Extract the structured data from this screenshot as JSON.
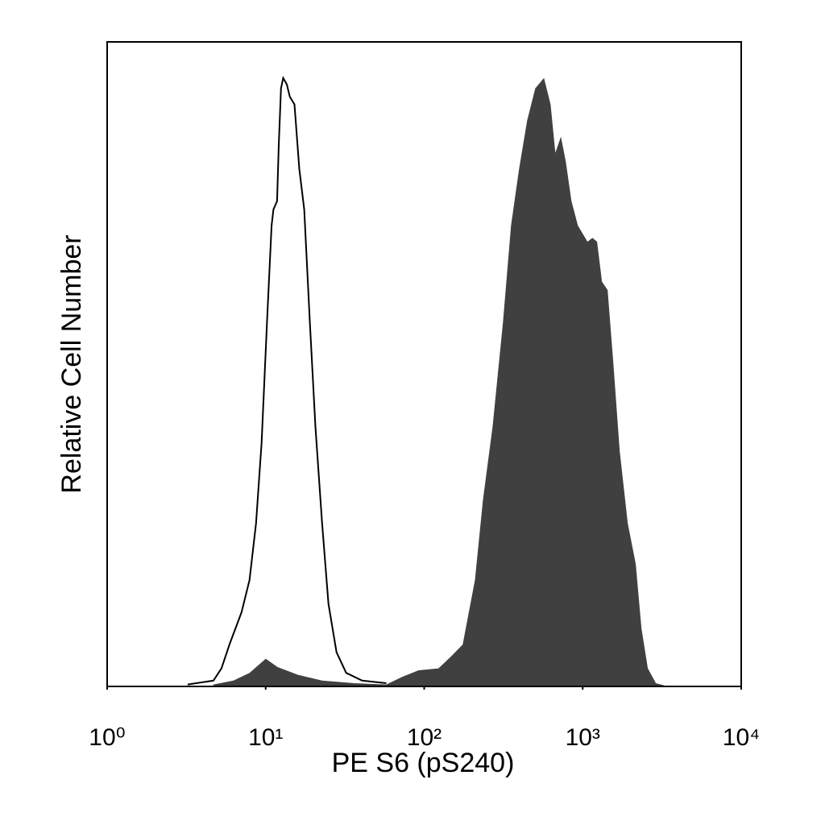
{
  "chart_data": {
    "type": "area",
    "x_label": "PE S6 (pS240)",
    "y_label": "Relative Cell Number",
    "xscale": "log",
    "xlim": [
      1,
      10000
    ],
    "xticks": [
      {
        "value": 1,
        "label": "10⁰"
      },
      {
        "value": 10,
        "label": "10¹"
      },
      {
        "value": 100,
        "label": "10²"
      },
      {
        "value": 1000,
        "label": "10³"
      },
      {
        "value": 10000,
        "label": "10⁴"
      }
    ],
    "ylim": [
      0,
      100
    ],
    "grid": false,
    "series": [
      {
        "color": "#404040",
        "filled": true,
        "x": [
          4.68,
          6.26,
          7.91,
          10.0,
          11.9,
          16.0,
          22.7,
          36.2,
          57.7,
          72.9,
          92.1,
          123,
          147,
          175,
          209,
          235,
          270,
          314,
          353,
          397,
          446,
          502,
          570,
          627,
          672,
          729,
          782,
          849,
          933,
          1072,
          1151,
          1233,
          1324,
          1436,
          1559,
          1713,
          1924,
          2162,
          2348,
          2577,
          2897,
          3451
        ],
        "values": [
          0.3,
          0.9,
          2.1,
          4.3,
          3.0,
          1.8,
          0.9,
          0.5,
          0.3,
          1.5,
          2.5,
          2.8,
          4.6,
          6.5,
          16.5,
          29.0,
          40.3,
          56.5,
          71.5,
          80.3,
          87.8,
          92.8,
          94.4,
          90.3,
          82.8,
          85.3,
          81.5,
          75.3,
          71.5,
          69.0,
          69.6,
          69.0,
          62.8,
          61.5,
          50.3,
          36.5,
          25.3,
          19.0,
          9.0,
          2.8,
          0.5,
          0
        ]
      },
      {
        "color": "#000000",
        "filled": false,
        "x": [
          3.22,
          4.68,
          5.26,
          5.91,
          7.04,
          7.91,
          8.69,
          9.43,
          10.2,
          10.9,
          11.2,
          11.8,
          12.1,
          12.5,
          12.9,
          13.6,
          14.2,
          15.2,
          16.3,
          17.5,
          19.0,
          20.6,
          22.7,
          24.9,
          28.0,
          32.2,
          40.6,
          57.7
        ],
        "values": [
          0.3,
          0.9,
          2.8,
          6.5,
          11.5,
          16.5,
          25.3,
          37.8,
          56.5,
          71.5,
          74.0,
          75.3,
          84.0,
          92.8,
          94.4,
          93.4,
          91.5,
          90.3,
          80.3,
          74.0,
          56.5,
          40.3,
          25.3,
          12.8,
          5.3,
          2.1,
          0.9,
          0.5
        ]
      }
    ]
  }
}
